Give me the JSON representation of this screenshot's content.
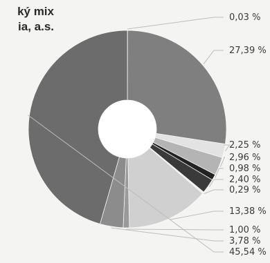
{
  "chart_data": {
    "type": "pie",
    "style": "donut",
    "title_lines": [
      "ký mix",
      "ia, a.s."
    ],
    "slices": [
      {
        "value": 0.03,
        "label": "0,03 %",
        "color": "#d6d6d6"
      },
      {
        "value": 27.39,
        "label": "27,39 %",
        "color": "#7f7f7f"
      },
      {
        "value": 2.25,
        "label": "2,25 %",
        "color": "#e3e3e3"
      },
      {
        "value": 2.96,
        "label": "2,96 %",
        "color": "#b4b4b4"
      },
      {
        "value": 0.98,
        "label": "0,98 %",
        "color": "#222222"
      },
      {
        "value": 2.4,
        "label": "2,40 %",
        "color": "#3a3a3a"
      },
      {
        "value": 0.29,
        "label": "0,29 %",
        "color": "#f2f2f2"
      },
      {
        "value": 13.38,
        "label": "13,38 %",
        "color": "#d0d0d0"
      },
      {
        "value": 1.0,
        "label": "1,00 %",
        "color": "#9a9a9a"
      },
      {
        "value": 3.78,
        "label": "3,78 %",
        "color": "#8c8c8c"
      },
      {
        "value": 45.54,
        "label": "45,54 %",
        "color": "#6c6c6c"
      }
    ]
  }
}
